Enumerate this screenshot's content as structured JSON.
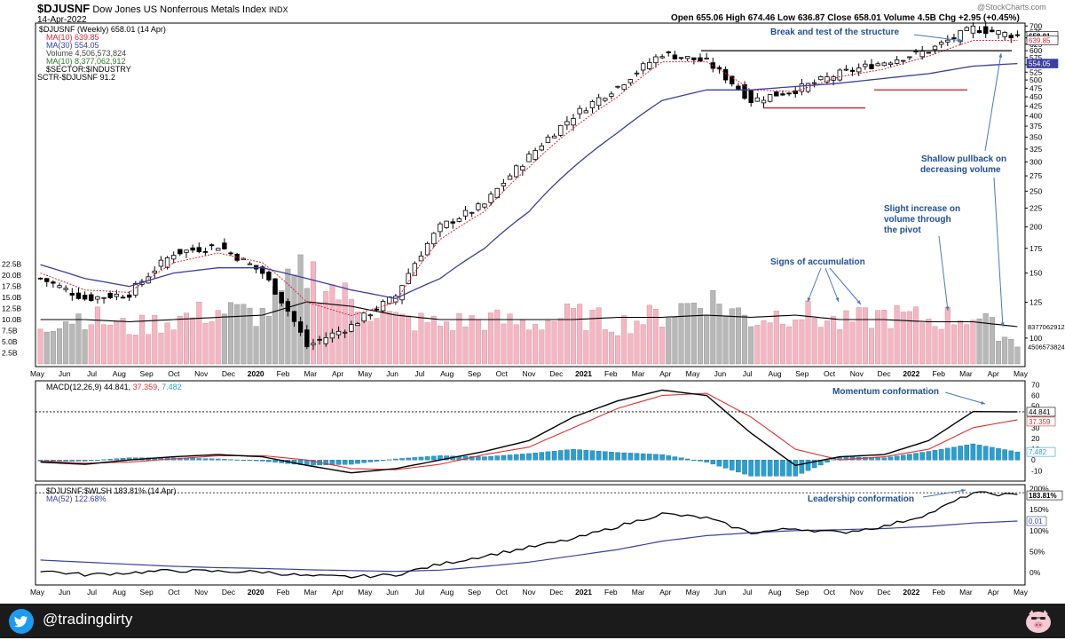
{
  "header": {
    "symbol": "$DJUSNF",
    "name": "Dow Jones US Nonferrous Metals Index",
    "exchange": "INDX",
    "date": "14-Apr-2022",
    "brand": "@StockCharts.com",
    "ohlc": "Open 655.06  High 674.46  Low 636.87  Close 658.01  Volume 4.5B  Chg +2.95 (+0.45%)"
  },
  "legend": {
    "price": "$DJUSNF (Weekly) 658.01 (14 Apr)",
    "ma10": "MA(10) 639.85",
    "ma30": "MA(30) 554.05",
    "volume": "Volume 4,506,573,824",
    "vol_ma": "MA(10) 8,377,062,912",
    "sector": "$SECTOR:$INDUSTRY",
    "sctr": "SCTR-$DJUSNF 91.2",
    "macd_name": "MACD(12,26,9)",
    "macd_v1": "44.841,",
    "macd_v2": "37.359,",
    "macd_v3": "7.482",
    "ratio": "$DJUSNF:$WLSH 183.81% (14 Apr)",
    "ratio_ma": "MA(52) 122.68%"
  },
  "annotations": {
    "break_test": "Break and test of the structure",
    "pullback1": "Shallow pullback on",
    "pullback2": "decreasing volume",
    "pivot1": "Slight increase on",
    "pivot2": "volume through",
    "pivot3": "the pivot",
    "accumulation": "Signs of accumulation",
    "momentum": "Momentum conformation",
    "leadership": "Leadership conformation"
  },
  "footer": {
    "handle": "@tradingdirty"
  },
  "colors": {
    "up_volume": "#f4b6c2",
    "down_volume": "#b8b8b8",
    "ma10": "#e0233b",
    "ma30": "#3b3fa0",
    "macd_signal": "#e03030",
    "histogram": "#2a9fd0",
    "annotation": "#1f4e96",
    "footer_bg": "#1b1b1b",
    "twitter": "#1d9bf0"
  },
  "chart_data": [
    {
      "type": "candlestick",
      "title": "$DJUSNF (Weekly)",
      "x_ticks": [
        "May",
        "Jun",
        "Jul",
        "Aug",
        "Sep",
        "Oct",
        "Nov",
        "Dec",
        "2020",
        "Feb",
        "Mar",
        "Apr",
        "May",
        "Jun",
        "Jul",
        "Aug",
        "Sep",
        "Oct",
        "Nov",
        "Dec",
        "2021",
        "Feb",
        "Mar",
        "Apr",
        "May",
        "Jun",
        "Jul",
        "Aug",
        "Sep",
        "Oct",
        "Nov",
        "Dec",
        "2022",
        "Feb",
        "Mar",
        "Apr",
        "May"
      ],
      "y_ticks": [
        700,
        675,
        650,
        625,
        600,
        575,
        550,
        525,
        500,
        475,
        450,
        425,
        400,
        375,
        350,
        325,
        300,
        275,
        250,
        225,
        200,
        175,
        150,
        125,
        100
      ],
      "ylim": [
        88,
        705
      ],
      "scale": "log",
      "last_labels": [
        "658.01",
        "639.85",
        "554.05"
      ],
      "series": [
        {
          "name": "Close",
          "x": [
            "2019-05",
            "2019-08",
            "2019-10",
            "2019-12",
            "2020-01",
            "2020-02",
            "2020-03",
            "2020-04",
            "2020-06",
            "2020-08",
            "2020-10",
            "2020-12",
            "2021-02",
            "2021-03",
            "2021-05",
            "2021-06",
            "2021-08",
            "2021-10",
            "2021-12",
            "2022-01",
            "2022-02",
            "2022-03",
            "2022-04"
          ],
          "values": [
            145,
            128,
            132,
            170,
            178,
            150,
            95,
            108,
            130,
            200,
            230,
            310,
            400,
            480,
            590,
            560,
            440,
            470,
            520,
            560,
            600,
            690,
            658
          ]
        },
        {
          "name": "MA(10)",
          "values": [
            150,
            135,
            133,
            160,
            170,
            160,
            125,
            115,
            125,
            185,
            220,
            290,
            370,
            450,
            560,
            560,
            470,
            465,
            510,
            535,
            580,
            640,
            640
          ]
        },
        {
          "name": "MA(30)",
          "values": [
            158,
            145,
            138,
            150,
            155,
            155,
            145,
            135,
            128,
            145,
            175,
            220,
            290,
            360,
            440,
            470,
            470,
            480,
            490,
            505,
            520,
            545,
            554
          ]
        }
      ],
      "annotations": [
        {
          "text": "Break and test of the structure",
          "x": "2022-01"
        },
        {
          "text": "Shallow pullback on decreasing volume",
          "x": "2022-04"
        },
        {
          "text": "Slight increase on volume through the pivot",
          "x": "2022-02"
        },
        {
          "text": "Signs of accumulation",
          "x": "2021-10"
        }
      ]
    },
    {
      "type": "bar",
      "title": "Volume",
      "y_ticks": [
        "22.5B",
        "20.0B",
        "17.5B",
        "15.0B",
        "12.5B",
        "10.0B",
        "7.5B",
        "5.0B",
        "2.5B"
      ],
      "ylim": [
        0,
        24
      ],
      "last_labels": [
        "8377062912",
        "4506573824"
      ],
      "series": [
        {
          "name": "Volume",
          "values_billions_sampled": [
            9,
            11,
            8,
            10,
            12,
            11,
            21,
            14,
            10,
            9,
            10,
            9,
            11,
            9,
            11,
            15,
            10,
            12,
            9,
            11,
            10,
            11,
            4.5
          ]
        },
        {
          "name": "MA(10)",
          "values_billions_sampled": [
            10,
            10,
            9.5,
            10,
            10.5,
            11,
            14,
            13,
            11,
            10,
            10,
            10,
            10,
            10.5,
            10.5,
            11,
            10.5,
            11,
            10,
            10,
            9.5,
            9.5,
            8.4
          ]
        }
      ]
    },
    {
      "type": "line",
      "title": "MACD(12,26,9)",
      "y_ticks": [
        70,
        60,
        50,
        40,
        30,
        20,
        10,
        0,
        -10
      ],
      "ylim": [
        -18,
        72
      ],
      "last_labels": [
        "44.841",
        "37.359",
        "7.482"
      ],
      "series": [
        {
          "name": "MACD",
          "values": [
            -2,
            -4,
            0,
            3,
            5,
            3,
            -5,
            -12,
            -8,
            0,
            8,
            18,
            40,
            55,
            65,
            60,
            25,
            -5,
            3,
            5,
            18,
            45,
            44.8
          ]
        },
        {
          "name": "Signal",
          "values": [
            -1,
            -3,
            -2,
            1,
            4,
            4,
            0,
            -8,
            -9,
            -4,
            5,
            12,
            30,
            48,
            60,
            62,
            40,
            10,
            0,
            3,
            10,
            30,
            37.4
          ]
        },
        {
          "name": "Histogram",
          "values": [
            -1,
            -1,
            2,
            2,
            1,
            -1,
            -5,
            -4,
            1,
            4,
            3,
            6,
            10,
            7,
            5,
            -2,
            -15,
            -15,
            3,
            2,
            8,
            15,
            7.5
          ]
        }
      ],
      "annotations": [
        {
          "text": "Momentum conformation"
        }
      ]
    },
    {
      "type": "line",
      "title": "$DJUSNF:$WLSH",
      "y_ticks": [
        "200%",
        "150%",
        "100%",
        "50%",
        "0%"
      ],
      "ylim": [
        -25,
        205
      ],
      "last_labels": [
        "183.81%",
        "0.01"
      ],
      "series": [
        {
          "name": "$DJUSNF:$WLSH",
          "values": [
            5,
            -5,
            0,
            5,
            3,
            2,
            -8,
            -10,
            -5,
            20,
            40,
            60,
            80,
            110,
            140,
            130,
            95,
            105,
            95,
            110,
            140,
            190,
            183.81
          ]
        },
        {
          "name": "MA(52)",
          "values": [
            30,
            25,
            20,
            15,
            12,
            10,
            7,
            5,
            3,
            6,
            15,
            25,
            40,
            55,
            75,
            88,
            95,
            100,
            102,
            105,
            110,
            118,
            122.68
          ]
        }
      ],
      "annotations": [
        {
          "text": "Leadership conformation"
        }
      ]
    }
  ]
}
